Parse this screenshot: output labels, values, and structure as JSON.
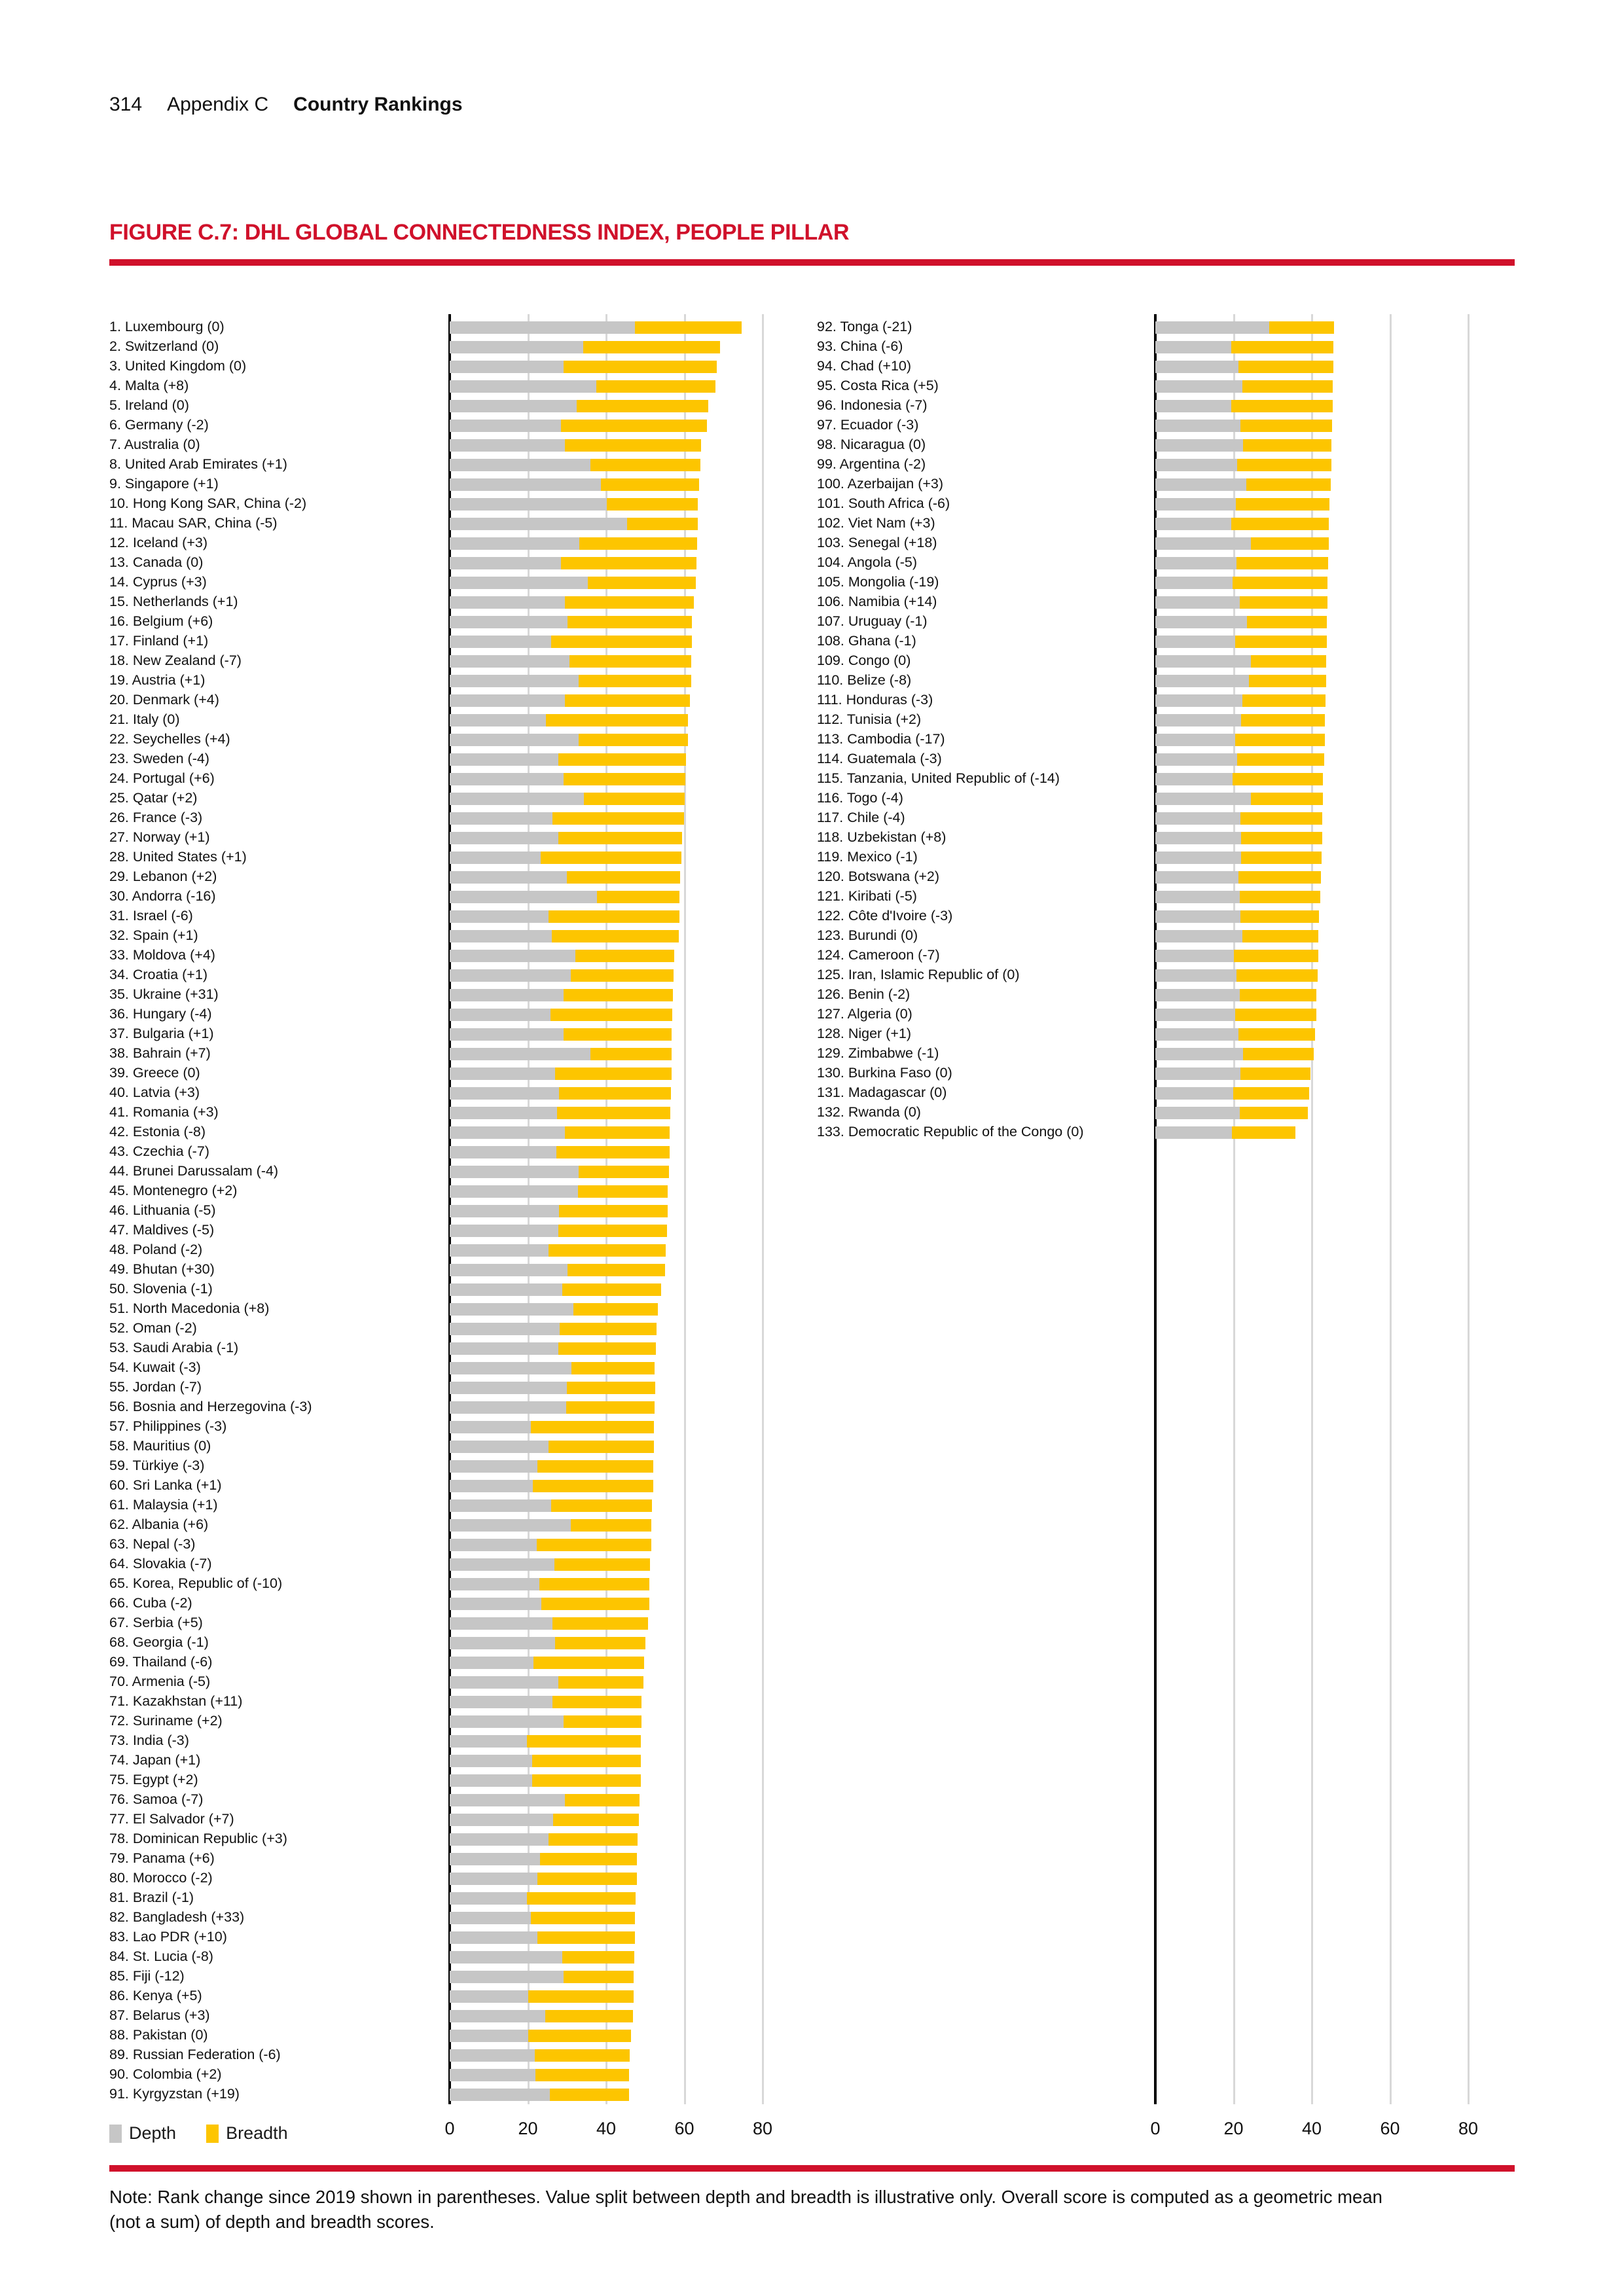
{
  "header": {
    "page_number": "314",
    "section": "Appendix C",
    "section_title": "Country Rankings"
  },
  "figure": {
    "title": "FIGURE C.7: DHL GLOBAL CONNECTEDNESS INDEX, PEOPLE PILLAR",
    "legend": {
      "depth_label": "Depth",
      "breadth_label": "Breadth"
    },
    "colors": {
      "depth": "#c6c6c6",
      "breadth": "#fdc500",
      "accent_red": "#d0112b",
      "grid": "#d8d8d8",
      "axis": "#000000"
    },
    "note_line1": "Note: Rank change since 2019 shown in parentheses. Value split between depth and breadth is illustrative only. Overall score is computed as a geometric mean",
    "note_line2": "(not a sum) of depth and breadth scores."
  },
  "chart_data": {
    "type": "bar",
    "orientation": "horizontal",
    "stacked": true,
    "series_names": [
      "Depth",
      "Breadth"
    ],
    "xlim": [
      0,
      80
    ],
    "ticks": [
      0,
      20,
      40,
      60,
      80
    ],
    "grid": true,
    "legend_position": "bottom-left",
    "entry_format": [
      "label",
      "depth",
      "breadth"
    ],
    "columns": [
      {
        "entries": [
          [
            "1. Luxembourg (0)",
            47.3,
            27.3
          ],
          [
            "2. Switzerland (0)",
            34.2,
            34.9
          ],
          [
            "3. United Kingdom (0)",
            29.2,
            39.1
          ],
          [
            "4. Malta (+8)",
            37.5,
            30.4
          ],
          [
            "5. Ireland (0)",
            32.5,
            33.6
          ],
          [
            "6. Germany (-2)",
            28.4,
            37.3
          ],
          [
            "7. Australia (0)",
            29.5,
            34.7
          ],
          [
            "8. United Arab Emirates (+1)",
            35.9,
            28.2
          ],
          [
            "9. Singapore (+1)",
            38.7,
            25.1
          ],
          [
            "10. Hong Kong SAR, China (-2)",
            40.2,
            23.3
          ],
          [
            "11. Macau SAR, China (-5)",
            45.3,
            18.1
          ],
          [
            "12. Iceland (+3)",
            33.1,
            30.1
          ],
          [
            "13. Canada (0)",
            28.4,
            34.7
          ],
          [
            "14. Cyprus (+3)",
            35.3,
            27.7
          ],
          [
            "15. Netherlands (+1)",
            29.4,
            33.0
          ],
          [
            "16. Belgium (+6)",
            30.1,
            31.9
          ],
          [
            "17. Finland (+1)",
            26.0,
            35.9
          ],
          [
            "18. New Zealand (-7)",
            30.6,
            31.2
          ],
          [
            "19. Austria (+1)",
            32.9,
            28.8
          ],
          [
            "20. Denmark (+4)",
            29.4,
            32.0
          ],
          [
            "21. Italy (0)",
            24.6,
            36.4
          ],
          [
            "22. Seychelles (+4)",
            33.0,
            27.9
          ],
          [
            "23. Sweden (-4)",
            27.7,
            32.8
          ],
          [
            "24. Portugal (+6)",
            29.1,
            31.1
          ],
          [
            "25. Qatar (+2)",
            34.3,
            25.8
          ],
          [
            "26. France (-3)",
            26.2,
            33.8
          ],
          [
            "27. Norway (+1)",
            27.7,
            31.7
          ],
          [
            "28. United States (+1)",
            23.2,
            36.0
          ],
          [
            "29. Lebanon (+2)",
            29.9,
            29.0
          ],
          [
            "30. Andorra (-16)",
            37.7,
            21.0
          ],
          [
            "31. Israel (-6)",
            25.2,
            33.5
          ],
          [
            "32. Spain (+1)",
            26.1,
            32.5
          ],
          [
            "33. Moldova (+4)",
            32.2,
            25.2
          ],
          [
            "34. Croatia (+1)",
            30.9,
            26.4
          ],
          [
            "35. Ukraine (+31)",
            29.1,
            27.9
          ],
          [
            "36. Hungary (-4)",
            25.8,
            31.1
          ],
          [
            "37. Bulgaria (+1)",
            29.1,
            27.7
          ],
          [
            "38. Bahrain (+7)",
            35.9,
            20.9
          ],
          [
            "39. Greece (0)",
            27.0,
            29.7
          ],
          [
            "40. Latvia (+3)",
            28.0,
            28.5
          ],
          [
            "41. Romania (+3)",
            27.4,
            29.0
          ],
          [
            "42. Estonia (-8)",
            29.4,
            26.9
          ],
          [
            "43. Czechia (-7)",
            27.2,
            29.1
          ],
          [
            "44. Brunei Darussalam (-4)",
            32.9,
            23.2
          ],
          [
            "45. Montenegro (+2)",
            32.8,
            23.0
          ],
          [
            "46. Lithuania (-5)",
            28.0,
            27.7
          ],
          [
            "47. Maldives (-5)",
            27.7,
            27.9
          ],
          [
            "48. Poland (-2)",
            25.3,
            29.9
          ],
          [
            "49. Bhutan (+30)",
            30.2,
            24.8
          ],
          [
            "50. Slovenia (-1)",
            28.8,
            25.2
          ],
          [
            "51. North Macedonia (+8)",
            31.7,
            21.6
          ],
          [
            "52. Oman (-2)",
            28.2,
            24.7
          ],
          [
            "53. Saudi Arabia (-1)",
            27.8,
            24.9
          ],
          [
            "54. Kuwait (-3)",
            31.1,
            21.3
          ],
          [
            "55. Jordan (-7)",
            29.9,
            22.6
          ],
          [
            "56. Bosnia and Herzegovina (-3)",
            29.8,
            22.6
          ],
          [
            "57. Philippines (-3)",
            20.8,
            31.5
          ],
          [
            "58. Mauritius (0)",
            25.2,
            27.0
          ],
          [
            "59. Türkiye (-3)",
            22.4,
            29.7
          ],
          [
            "60. Sri Lanka (+1)",
            21.3,
            30.7
          ],
          [
            "61. Malaysia (+1)",
            25.9,
            25.8
          ],
          [
            "62. Albania (+6)",
            30.9,
            20.7
          ],
          [
            "63. Nepal (-3)",
            22.2,
            29.3
          ],
          [
            "64. Slovakia (-7)",
            26.7,
            24.5
          ],
          [
            "65. Korea, Republic of (-10)",
            23.0,
            28.1
          ],
          [
            "66. Cuba (-2)",
            23.5,
            27.5
          ],
          [
            "67. Serbia (+5)",
            26.3,
            24.4
          ],
          [
            "68. Georgia (-1)",
            26.9,
            23.2
          ],
          [
            "69. Thailand (-6)",
            21.4,
            28.3
          ],
          [
            "70. Armenia (-5)",
            27.7,
            21.8
          ],
          [
            "71. Kazakhstan (+11)",
            26.3,
            22.8
          ],
          [
            "72. Suriname (+2)",
            29.1,
            19.9
          ],
          [
            "73. India (-3)",
            19.8,
            29.1
          ],
          [
            "74. Japan (+1)",
            21.1,
            27.8
          ],
          [
            "75. Egypt (+2)",
            21.1,
            27.7
          ],
          [
            "76. Samoa (-7)",
            29.5,
            19.1
          ],
          [
            "77. El Salvador (+7)",
            26.4,
            22.0
          ],
          [
            "78. Dominican Republic (+3)",
            25.2,
            22.9
          ],
          [
            "79. Panama (+6)",
            23.1,
            24.8
          ],
          [
            "80. Morocco (-2)",
            22.4,
            25.4
          ],
          [
            "81. Brazil (-1)",
            19.8,
            27.8
          ],
          [
            "82. Bangladesh (+33)",
            20.8,
            26.6
          ],
          [
            "83. Lao PDR (+10)",
            22.5,
            24.8
          ],
          [
            "84. St. Lucia (-8)",
            28.8,
            18.4
          ],
          [
            "85. Fiji (-12)",
            29.1,
            18.0
          ],
          [
            "86. Kenya (+5)",
            20.1,
            27.0
          ],
          [
            "87. Belarus (+3)",
            24.4,
            22.4
          ],
          [
            "88. Pakistan (0)",
            20.1,
            26.3
          ],
          [
            "89. Russian Federation (-6)",
            21.8,
            24.2
          ],
          [
            "90. Colombia (+2)",
            22.0,
            23.9
          ],
          [
            "91. Kyrgyzstan (+19)",
            25.6,
            20.2
          ]
        ]
      },
      {
        "entries": [
          [
            "92. Tonga (-21)",
            29.2,
            16.5
          ],
          [
            "93. China (-6)",
            19.4,
            26.2
          ],
          [
            "94. Chad (+10)",
            21.3,
            24.2
          ],
          [
            "95. Costa Rica (+5)",
            22.2,
            23.2
          ],
          [
            "96. Indonesia (-7)",
            19.4,
            25.9
          ],
          [
            "97. Ecuador (-3)",
            21.7,
            23.5
          ],
          [
            "98. Nicaragua (0)",
            22.4,
            22.7
          ],
          [
            "99. Argentina (-2)",
            20.9,
            24.1
          ],
          [
            "100. Azerbaijan (+3)",
            23.3,
            21.6
          ],
          [
            "101. South Africa (-6)",
            20.6,
            24.0
          ],
          [
            "102. Viet Nam (+3)",
            19.4,
            25.0
          ],
          [
            "103. Senegal (+18)",
            24.4,
            19.9
          ],
          [
            "104. Angola (-5)",
            20.7,
            23.5
          ],
          [
            "105. Mongolia (-19)",
            19.8,
            24.3
          ],
          [
            "106. Namibia (+14)",
            21.6,
            22.4
          ],
          [
            "107. Uruguay (-1)",
            23.4,
            20.5
          ],
          [
            "108. Ghana (-1)",
            20.5,
            23.3
          ],
          [
            "109. Congo (0)",
            24.4,
            19.3
          ],
          [
            "110. Belize (-8)",
            24.0,
            19.6
          ],
          [
            "111. Honduras (-3)",
            22.2,
            21.3
          ],
          [
            "112. Tunisia (+2)",
            22.0,
            21.4
          ],
          [
            "113. Cambodia (-17)",
            20.5,
            22.8
          ],
          [
            "114. Guatemala (-3)",
            20.9,
            22.2
          ],
          [
            "115. Tanzania, United Republic of (-14)",
            19.7,
            23.2
          ],
          [
            "116. Togo (-4)",
            24.4,
            18.4
          ],
          [
            "117. Chile (-4)",
            21.7,
            21.0
          ],
          [
            "118. Uzbekistan (+8)",
            22.0,
            20.6
          ],
          [
            "119. Mexico (-1)",
            22.0,
            20.5
          ],
          [
            "120. Botswana (+2)",
            21.3,
            21.1
          ],
          [
            "121. Kiribati (-5)",
            21.6,
            20.5
          ],
          [
            "122. Côte d'Ivoire (-3)",
            21.8,
            20.0
          ],
          [
            "123. Burundi (0)",
            22.2,
            19.5
          ],
          [
            "124. Cameroon (-7)",
            20.1,
            21.5
          ],
          [
            "125. Iran, Islamic Republic of (0)",
            20.7,
            20.8
          ],
          [
            "126. Benin (-2)",
            21.6,
            19.6
          ],
          [
            "127. Algeria (0)",
            20.5,
            20.6
          ],
          [
            "128. Niger (+1)",
            21.3,
            19.5
          ],
          [
            "129. Zimbabwe (-1)",
            22.4,
            18.1
          ],
          [
            "130. Burkina Faso (0)",
            21.8,
            17.8
          ],
          [
            "131. Madagascar (0)",
            19.9,
            19.5
          ],
          [
            "132. Rwanda (0)",
            21.6,
            17.4
          ],
          [
            "133. Democratic Republic of the Congo (0)",
            19.5,
            16.4
          ]
        ]
      }
    ]
  }
}
